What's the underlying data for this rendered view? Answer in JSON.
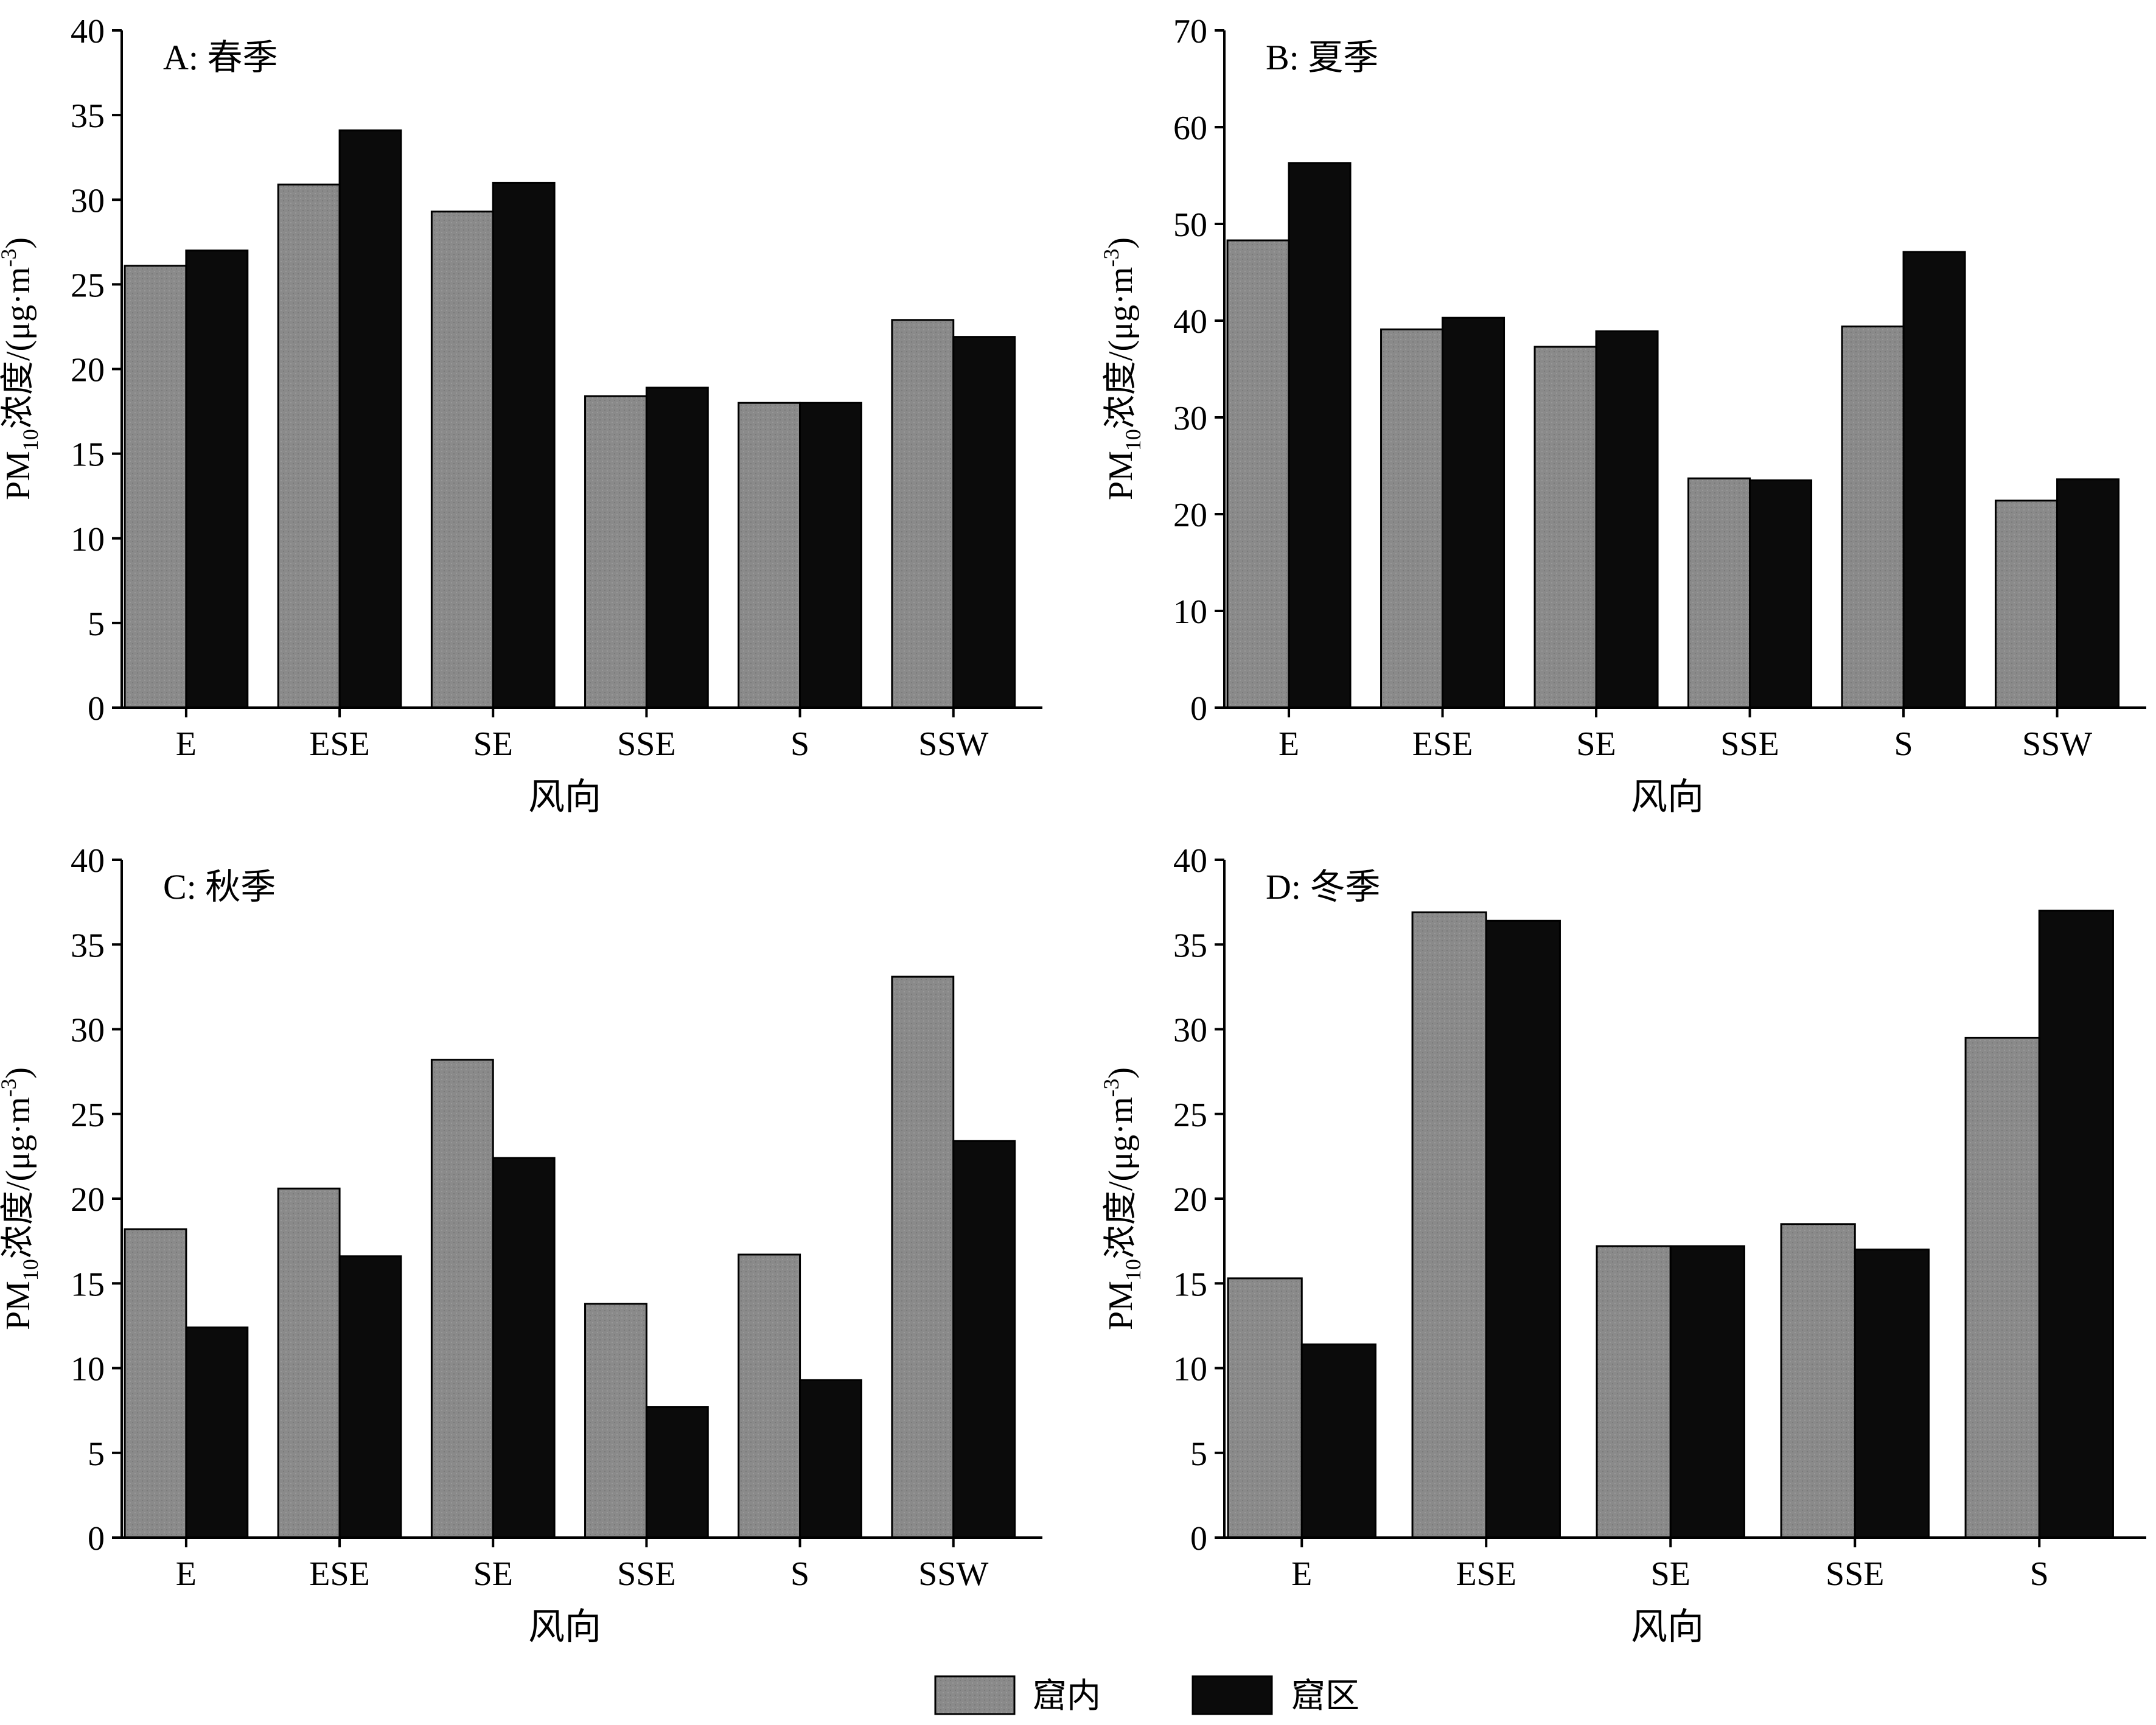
{
  "colors": {
    "indoor": "#8a8a8a",
    "area": "#0b0b0b",
    "axis": "#000000"
  },
  "legend": {
    "items": [
      "窟内",
      "窟区"
    ]
  },
  "chart_data": [
    {
      "type": "bar",
      "title": "A: 春季",
      "xlabel": "风向",
      "ylabel_main": "PM",
      "ylabel_sub": "10",
      "ylabel_rest": "浓度/(μg·m",
      "ylabel_sup": "-3",
      "ylabel_end": ")",
      "ylim": [
        0,
        40
      ],
      "yticks": [
        0,
        5,
        10,
        15,
        20,
        25,
        30,
        35,
        40
      ],
      "categories": [
        "E",
        "ESE",
        "SE",
        "SSE",
        "S",
        "SSW"
      ],
      "series": [
        {
          "name": "窟内",
          "values": [
            26.1,
            30.9,
            29.3,
            18.4,
            18.0,
            22.9
          ]
        },
        {
          "name": "窟区",
          "values": [
            27.0,
            34.1,
            31.0,
            18.9,
            18.0,
            21.9
          ]
        }
      ]
    },
    {
      "type": "bar",
      "title": "B: 夏季",
      "xlabel": "风向",
      "ylabel_main": "PM",
      "ylabel_sub": "10",
      "ylabel_rest": "浓度/(μg·m",
      "ylabel_sup": "-3",
      "ylabel_end": ")",
      "ylim": [
        0,
        70
      ],
      "yticks": [
        0,
        10,
        20,
        30,
        40,
        50,
        60,
        70
      ],
      "categories": [
        "E",
        "ESE",
        "SE",
        "SSE",
        "S",
        "SSW"
      ],
      "series": [
        {
          "name": "窟内",
          "values": [
            48.3,
            39.1,
            37.3,
            23.7,
            39.4,
            21.4
          ]
        },
        {
          "name": "窟区",
          "values": [
            56.3,
            40.3,
            38.9,
            23.5,
            47.1,
            23.6
          ]
        }
      ]
    },
    {
      "type": "bar",
      "title": "C: 秋季",
      "xlabel": "风向",
      "ylabel_main": "PM",
      "ylabel_sub": "10",
      "ylabel_rest": "浓度/(μg·m",
      "ylabel_sup": "-3",
      "ylabel_end": ")",
      "ylim": [
        0,
        40
      ],
      "yticks": [
        0,
        5,
        10,
        15,
        20,
        25,
        30,
        35,
        40
      ],
      "categories": [
        "E",
        "ESE",
        "SE",
        "SSE",
        "S",
        "SSW"
      ],
      "series": [
        {
          "name": "窟内",
          "values": [
            18.2,
            20.6,
            28.2,
            13.8,
            16.7,
            33.1
          ]
        },
        {
          "name": "窟区",
          "values": [
            12.4,
            16.6,
            22.4,
            7.7,
            9.3,
            23.4
          ]
        }
      ]
    },
    {
      "type": "bar",
      "title": "D: 冬季",
      "xlabel": "风向",
      "ylabel_main": "PM",
      "ylabel_sub": "10",
      "ylabel_rest": "浓度/(μg·m",
      "ylabel_sup": "-3",
      "ylabel_end": ")",
      "ylim": [
        0,
        40
      ],
      "yticks": [
        0,
        5,
        10,
        15,
        20,
        25,
        30,
        35,
        40
      ],
      "categories": [
        "E",
        "ESE",
        "SE",
        "SSE",
        "S"
      ],
      "series": [
        {
          "name": "窟内",
          "values": [
            15.3,
            36.9,
            17.2,
            18.5,
            29.5
          ]
        },
        {
          "name": "窟区",
          "values": [
            11.4,
            36.4,
            17.2,
            17.0,
            37.0
          ]
        }
      ]
    }
  ]
}
